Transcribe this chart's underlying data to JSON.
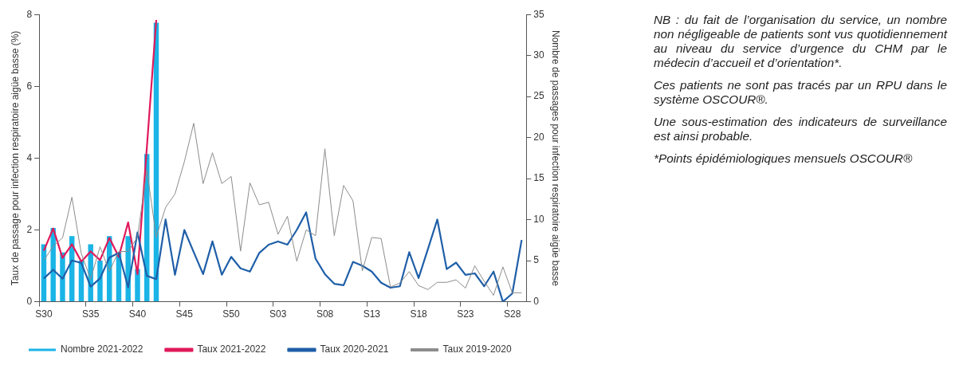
{
  "chart_data": {
    "type": "line",
    "ylabel": "Taux de passage pour infection respiratoire aigüe basse (%)",
    "y2label": "Nombre de passages pour infection respiratoire aigüe basse",
    "categories": [
      "S30",
      null,
      null,
      null,
      null,
      "S35",
      null,
      null,
      null,
      null,
      "S40",
      null,
      null,
      null,
      null,
      "S45",
      null,
      null,
      null,
      null,
      "S50",
      null,
      null,
      null,
      null,
      "S03",
      null,
      null,
      null,
      null,
      "S08",
      null,
      null,
      null,
      null,
      "S13",
      null,
      null,
      null,
      null,
      "S18",
      null,
      null,
      null,
      null,
      "S23",
      null,
      null,
      null,
      null,
      "S28",
      null
    ],
    "ylim": [
      0,
      8
    ],
    "yticks": [
      0,
      2,
      4,
      6,
      8
    ],
    "y2lim": [
      0,
      35
    ],
    "y2ticks": [
      0,
      5,
      10,
      15,
      20,
      25,
      30,
      35
    ],
    "legend": "bottom",
    "series": [
      {
        "name": "Nombre 2021-2022",
        "type": "bar",
        "axis": "y2",
        "color": "#1ab4e6",
        "values": [
          7,
          9,
          6,
          8,
          5,
          7,
          5,
          8,
          6,
          8,
          4,
          18,
          34,
          null,
          null,
          null,
          null,
          null,
          null,
          null,
          null,
          null,
          null,
          null,
          null,
          null,
          null,
          null,
          null,
          null,
          null,
          null,
          null,
          null,
          null,
          null,
          null,
          null,
          null,
          null,
          null,
          null,
          null,
          null,
          null,
          null,
          null,
          null,
          null,
          null,
          null,
          null
        ]
      },
      {
        "name": "Taux 2021-2022",
        "color": "#e0195a",
        "values": [
          1.42,
          2.04,
          1.22,
          1.6,
          1.12,
          1.4,
          1.16,
          1.78,
          1.25,
          2.21,
          0.77,
          4.3,
          7.85,
          null,
          null,
          null,
          null,
          null,
          null,
          null,
          null,
          null,
          null,
          null,
          null,
          null,
          null,
          null,
          null,
          null,
          null,
          null,
          null,
          null,
          null,
          null,
          null,
          null,
          null,
          null,
          null,
          null,
          null,
          null,
          null,
          null,
          null,
          null,
          null,
          null,
          null,
          null
        ]
      },
      {
        "name": "Taux 2020-2021",
        "color": "#1f5fa8",
        "values": [
          0.65,
          0.89,
          0.64,
          1.15,
          1.08,
          0.42,
          0.65,
          1.23,
          1.36,
          0.4,
          1.93,
          0.72,
          0.63,
          2.29,
          0.75,
          2.0,
          1.38,
          0.77,
          1.68,
          0.75,
          1.25,
          0.93,
          0.84,
          1.36,
          1.59,
          1.68,
          1.59,
          2.0,
          2.49,
          1.2,
          0.77,
          0.5,
          0.46,
          1.11,
          1.0,
          0.84,
          0.53,
          0.39,
          0.43,
          1.38,
          0.66,
          1.47,
          2.29,
          0.91,
          1.09,
          0.75,
          0.79,
          0.43,
          0.84,
          0.0,
          0.23,
          1.72
        ]
      },
      {
        "name": "Taux 2019-2020",
        "color": "#8c8c8c",
        "values": [
          1.15,
          1.55,
          1.78,
          2.91,
          1.34,
          0.63,
          1.53,
          0.85,
          1.4,
          1.4,
          1.8,
          3.67,
          1.8,
          2.63,
          3.0,
          3.9,
          4.97,
          3.29,
          4.15,
          3.29,
          3.49,
          1.41,
          3.31,
          2.7,
          2.77,
          1.88,
          2.38,
          1.13,
          2.0,
          1.84,
          4.26,
          1.84,
          3.24,
          2.81,
          0.86,
          1.79,
          1.76,
          0.41,
          0.52,
          0.84,
          0.45,
          0.34,
          0.54,
          0.54,
          0.61,
          0.38,
          1.0,
          0.57,
          0.18,
          0.97,
          0.25,
          0.25
        ]
      }
    ],
    "annotations": [
      "NB : du fait de l’organisation du service, un nombre non négligeable de patients sont vus quotidiennement au niveau du service d’urgence du CHM par le médecin d’accueil et d’orientation*.",
      "Ces patients ne sont pas tracés par un RPU dans le système OSCOUR®.",
      "Une sous-estimation des indicateurs de surveillance est ainsi probable.",
      "*Points épidémiologiques mensuels OSCOUR®"
    ]
  }
}
